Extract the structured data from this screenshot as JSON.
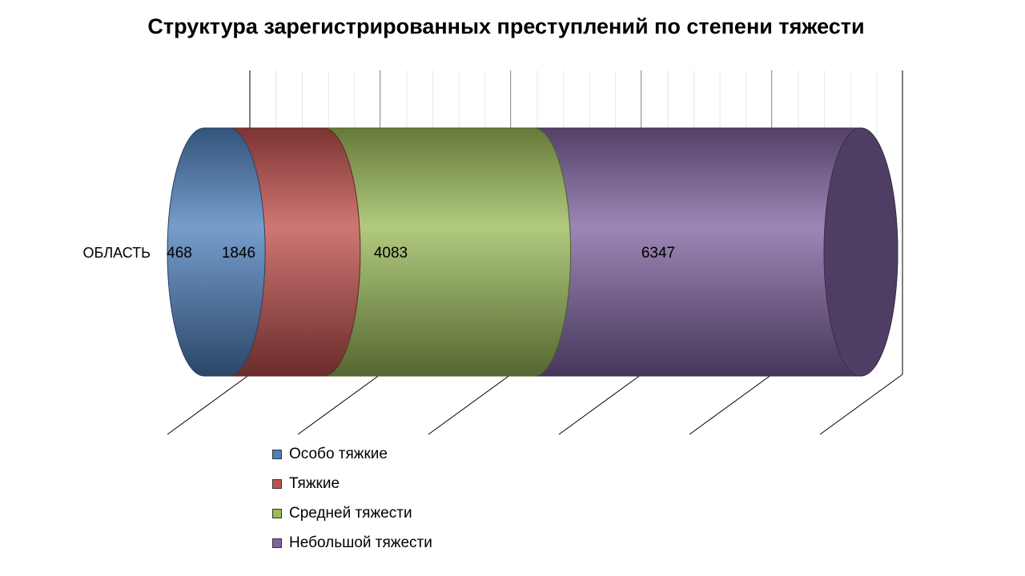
{
  "chart_data": {
    "type": "bar",
    "orientation": "horizontal",
    "stacked": true,
    "style": "3d-cylinder",
    "title": "Структура зарегистрированных преступлений по степени тяжести",
    "categories": [
      "ОБЛАСТЬ"
    ],
    "series": [
      {
        "name": "Особо тяжкие",
        "values": [
          468
        ],
        "color": "#4f81bd"
      },
      {
        "name": "Тяжкие",
        "values": [
          1846
        ],
        "color": "#c0504d"
      },
      {
        "name": "Средней тяжести",
        "values": [
          4083
        ],
        "color": "#9bbb59"
      },
      {
        "name": "Небольшой тяжести",
        "values": [
          6347
        ],
        "color": "#8064a2"
      }
    ],
    "grid": true,
    "legend": "bottom"
  }
}
